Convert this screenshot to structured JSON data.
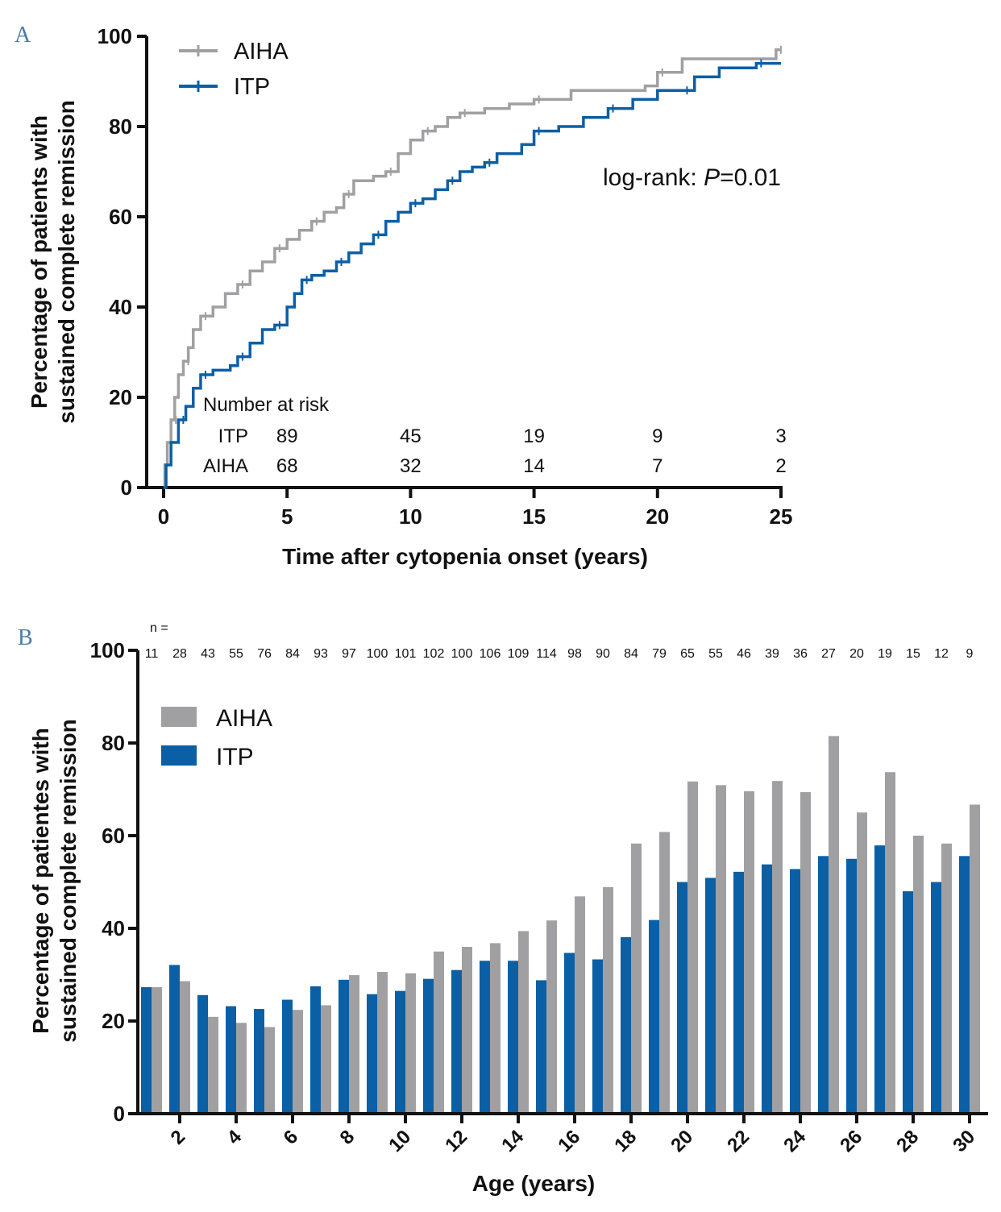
{
  "chart_data": [
    {
      "panel": "A",
      "type": "line",
      "title": "",
      "xlabel": "Time after cytopenia onset (years)",
      "ylabel_lines": [
        "Percentage of patients with",
        "sustained complete remission"
      ],
      "xlim": [
        0,
        25
      ],
      "ylim": [
        0,
        100
      ],
      "xticks": [
        0,
        5,
        10,
        15,
        20,
        25
      ],
      "yticks": [
        0,
        20,
        40,
        60,
        80,
        100
      ],
      "annotation": {
        "prefix": "log-rank: ",
        "italic": "P",
        "suffix": "=0.01"
      },
      "series": [
        {
          "name": "AIHA",
          "color": "#a0a0a3",
          "points": [
            [
              0,
              0
            ],
            [
              0.05,
              5
            ],
            [
              0.15,
              10
            ],
            [
              0.3,
              15
            ],
            [
              0.45,
              20
            ],
            [
              0.6,
              25
            ],
            [
              0.8,
              28
            ],
            [
              1.0,
              31
            ],
            [
              1.2,
              35
            ],
            [
              1.5,
              38
            ],
            [
              2.0,
              40
            ],
            [
              2.5,
              43
            ],
            [
              3.0,
              45
            ],
            [
              3.5,
              48
            ],
            [
              4.0,
              50
            ],
            [
              4.5,
              53
            ],
            [
              5.0,
              55
            ],
            [
              5.5,
              57
            ],
            [
              6.0,
              59
            ],
            [
              6.5,
              61
            ],
            [
              7.0,
              62
            ],
            [
              7.3,
              65
            ],
            [
              7.7,
              68
            ],
            [
              8.5,
              69
            ],
            [
              9.0,
              70
            ],
            [
              9.5,
              74
            ],
            [
              10.0,
              77
            ],
            [
              10.5,
              79
            ],
            [
              11.0,
              80
            ],
            [
              11.5,
              82
            ],
            [
              12.0,
              83
            ],
            [
              13.0,
              84
            ],
            [
              14.0,
              85
            ],
            [
              15.0,
              86
            ],
            [
              16.5,
              88
            ],
            [
              19.5,
              89
            ],
            [
              20.0,
              92
            ],
            [
              21.0,
              95
            ],
            [
              23.0,
              95
            ],
            [
              24.8,
              97
            ],
            [
              25.0,
              97
            ]
          ]
        },
        {
          "name": "ITP",
          "color": "#0b5fa5",
          "points": [
            [
              0,
              0
            ],
            [
              0.1,
              5
            ],
            [
              0.3,
              10
            ],
            [
              0.6,
              15
            ],
            [
              0.9,
              18
            ],
            [
              1.2,
              22
            ],
            [
              1.5,
              25
            ],
            [
              2.0,
              26
            ],
            [
              2.7,
              27
            ],
            [
              3.0,
              29
            ],
            [
              3.5,
              32
            ],
            [
              4.0,
              35
            ],
            [
              4.5,
              36
            ],
            [
              5.0,
              40
            ],
            [
              5.3,
              43
            ],
            [
              5.6,
              46
            ],
            [
              6.0,
              47
            ],
            [
              6.5,
              48
            ],
            [
              7.0,
              50
            ],
            [
              7.5,
              52
            ],
            [
              8.0,
              54
            ],
            [
              8.5,
              56
            ],
            [
              9.0,
              59
            ],
            [
              9.5,
              61
            ],
            [
              10.0,
              63
            ],
            [
              10.5,
              64
            ],
            [
              11.0,
              66
            ],
            [
              11.5,
              68
            ],
            [
              12.0,
              70
            ],
            [
              12.5,
              71
            ],
            [
              13.0,
              72
            ],
            [
              13.5,
              74
            ],
            [
              14.5,
              76
            ],
            [
              15.0,
              79
            ],
            [
              16.0,
              80
            ],
            [
              17.0,
              82
            ],
            [
              18.0,
              84
            ],
            [
              19.0,
              86
            ],
            [
              20.0,
              88
            ],
            [
              21.0,
              88
            ],
            [
              21.5,
              91
            ],
            [
              22.5,
              93
            ],
            [
              24.0,
              94
            ],
            [
              25.0,
              94
            ]
          ]
        }
      ],
      "risk_table": {
        "title": "Number at risk",
        "times": [
          5,
          10,
          15,
          20,
          25
        ],
        "rows": [
          {
            "label": "ITP",
            "values": [
              "89",
              "45",
              "19",
              "9",
              "3"
            ]
          },
          {
            "label": "AIHA",
            "values": [
              "68",
              "32",
              "14",
              "7",
              "2"
            ]
          }
        ]
      }
    },
    {
      "panel": "B",
      "type": "bar",
      "title": "",
      "xlabel": "Age (years)",
      "ylabel_lines": [
        "Percentage of patientes with",
        "sustained complete remission"
      ],
      "ylim": [
        0,
        100
      ],
      "yticks": [
        0,
        20,
        40,
        60,
        80,
        100
      ],
      "categories": [
        1,
        2,
        3,
        4,
        5,
        6,
        7,
        8,
        9,
        10,
        11,
        12,
        13,
        14,
        15,
        16,
        17,
        18,
        19,
        20,
        21,
        22,
        23,
        24,
        25,
        26,
        27,
        28,
        29,
        30
      ],
      "xtick_labels": [
        "2",
        "4",
        "6",
        "8",
        "10",
        "12",
        "14",
        "16",
        "18",
        "20",
        "22",
        "24",
        "26",
        "28",
        "30"
      ],
      "n_label": "n =",
      "n_values": [
        "11",
        "28",
        "43",
        "55",
        "76",
        "84",
        "93",
        "97",
        "100",
        "101",
        "102",
        "100",
        "106",
        "109",
        "114",
        "98",
        "90",
        "84",
        "79",
        "65",
        "55",
        "46",
        "39",
        "36",
        "27",
        "20",
        "19",
        "15",
        "12",
        "9"
      ],
      "series": [
        {
          "name": "ITP",
          "color": "#0b5fa5",
          "values": [
            27.3,
            32.1,
            25.6,
            23.2,
            22.6,
            24.6,
            27.5,
            28.9,
            25.8,
            26.5,
            29.1,
            31.0,
            33.0,
            33.0,
            28.8,
            34.7,
            33.3,
            38.1,
            41.8,
            50.0,
            50.9,
            52.2,
            53.8,
            52.8,
            55.6,
            55.0,
            57.9,
            48.0,
            50.0,
            55.6
          ]
        },
        {
          "name": "AIHA",
          "color": "#a0a0a3",
          "values": [
            27.3,
            28.6,
            20.9,
            19.6,
            18.7,
            22.4,
            23.4,
            29.9,
            30.6,
            30.3,
            35.0,
            36.0,
            36.8,
            39.4,
            41.7,
            46.9,
            48.9,
            58.3,
            60.8,
            71.7,
            70.9,
            69.6,
            71.8,
            69.4,
            81.5,
            65.0,
            73.7,
            60.0,
            58.3,
            66.7
          ]
        }
      ]
    }
  ]
}
